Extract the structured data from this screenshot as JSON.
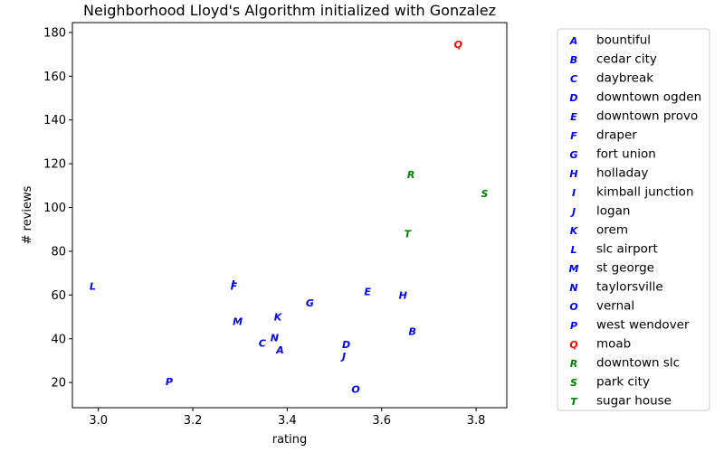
{
  "chart_data": {
    "type": "scatter",
    "title": "Neighborhood Lloyd's Algorithm initialized with Gonzalez",
    "xlabel": "rating",
    "ylabel": "# reviews",
    "xlim": [
      2.945,
      3.865
    ],
    "ylim": [
      8.5,
      184.5
    ],
    "xticks": [
      "3.0",
      "3.2",
      "3.4",
      "3.6",
      "3.8"
    ],
    "yticks": [
      "20",
      "40",
      "60",
      "80",
      "100",
      "120",
      "140",
      "160",
      "180"
    ],
    "grid": false,
    "legend_position": "outside-right",
    "cluster_colors": [
      "#0000ff",
      "#ff0000",
      "#008000"
    ],
    "points": [
      {
        "letter": "A",
        "name": "bountiful",
        "x": 3.385,
        "y": 35,
        "cluster": 0
      },
      {
        "letter": "B",
        "name": "cedar city",
        "x": 3.665,
        "y": 43.5,
        "cluster": 0
      },
      {
        "letter": "C",
        "name": "daybreak",
        "x": 3.347,
        "y": 38,
        "cluster": 0
      },
      {
        "letter": "D",
        "name": "downtown ogden",
        "x": 3.525,
        "y": 37.5,
        "cluster": 0
      },
      {
        "letter": "E",
        "name": "downtown provo",
        "x": 3.57,
        "y": 61.5,
        "cluster": 0
      },
      {
        "letter": "F",
        "name": "draper",
        "x": 3.287,
        "y": 64,
        "cluster": 0
      },
      {
        "letter": "G",
        "name": "fort union",
        "x": 3.448,
        "y": 56.5,
        "cluster": 0
      },
      {
        "letter": "H",
        "name": "holladay",
        "x": 3.645,
        "y": 60,
        "cluster": 0
      },
      {
        "letter": "I",
        "name": "kimball junction",
        "x": 3.285,
        "y": 65,
        "cluster": 0
      },
      {
        "letter": "J",
        "name": "logan",
        "x": 3.52,
        "y": 32,
        "cluster": 0
      },
      {
        "letter": "K",
        "name": "orem",
        "x": 3.38,
        "y": 50,
        "cluster": 0
      },
      {
        "letter": "L",
        "name": "slc airport",
        "x": 2.988,
        "y": 64,
        "cluster": 0
      },
      {
        "letter": "M",
        "name": "st george",
        "x": 3.295,
        "y": 48,
        "cluster": 0
      },
      {
        "letter": "N",
        "name": "taylorsville",
        "x": 3.373,
        "y": 40.5,
        "cluster": 0
      },
      {
        "letter": "O",
        "name": "vernal",
        "x": 3.545,
        "y": 17,
        "cluster": 0
      },
      {
        "letter": "P",
        "name": "west wendover",
        "x": 3.15,
        "y": 20.5,
        "cluster": 0
      },
      {
        "letter": "Q",
        "name": "moab",
        "x": 3.762,
        "y": 174.5,
        "cluster": 1
      },
      {
        "letter": "R",
        "name": "downtown slc",
        "x": 3.662,
        "y": 115,
        "cluster": 2
      },
      {
        "letter": "S",
        "name": "park city",
        "x": 3.818,
        "y": 106.5,
        "cluster": 2
      },
      {
        "letter": "T",
        "name": "sugar house",
        "x": 3.655,
        "y": 88,
        "cluster": 2
      }
    ]
  }
}
